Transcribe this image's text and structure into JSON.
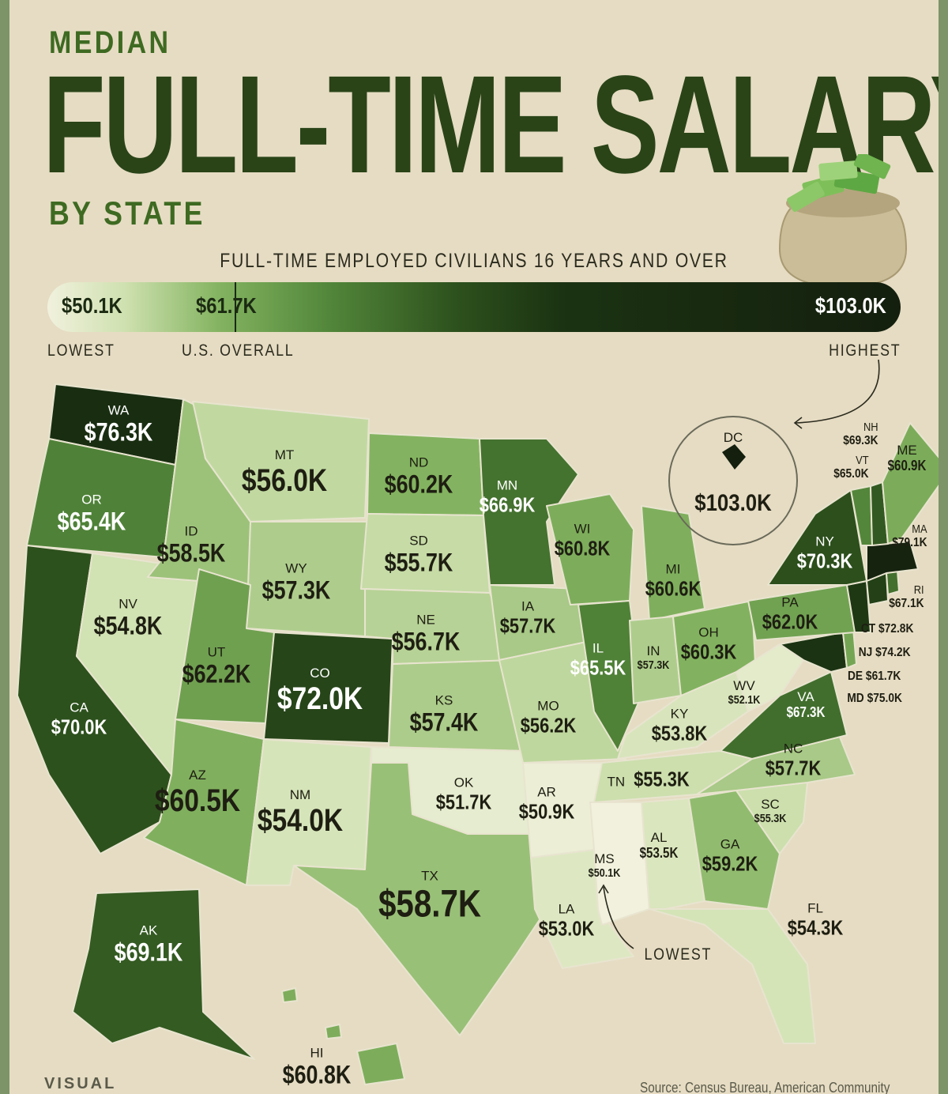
{
  "title": {
    "line1": "MEDIAN",
    "line2": "FULL-TIME SALARY",
    "line3": "BY STATE"
  },
  "subtitle": "FULL-TIME EMPLOYED CIVILIANS 16 YEARS AND OVER",
  "legend": {
    "min_value": "$50.1K",
    "us_value": "$61.7K",
    "max_value": "$103.0K",
    "min_label": "LOWEST",
    "us_label": "U.S. OVERALL",
    "max_label": "HIGHEST",
    "min_numeric": 50.1,
    "us_numeric": 61.7,
    "max_numeric": 103.0,
    "colors": [
      "#f1f1dd",
      "#cfe1b0",
      "#84b461",
      "#52863a",
      "#2d511d",
      "#1b3312",
      "#141f0e"
    ]
  },
  "states": [
    {
      "abbr": "WA",
      "value": "$76.3K"
    },
    {
      "abbr": "OR",
      "value": "$65.4K"
    },
    {
      "abbr": "CA",
      "value": "$70.0K"
    },
    {
      "abbr": "NV",
      "value": "$54.8K"
    },
    {
      "abbr": "ID",
      "value": "$58.5K"
    },
    {
      "abbr": "MT",
      "value": "$56.0K"
    },
    {
      "abbr": "WY",
      "value": "$57.3K"
    },
    {
      "abbr": "UT",
      "value": "$62.2K"
    },
    {
      "abbr": "AZ",
      "value": "$60.5K"
    },
    {
      "abbr": "CO",
      "value": "$72.0K"
    },
    {
      "abbr": "NM",
      "value": "$54.0K"
    },
    {
      "abbr": "ND",
      "value": "$60.2K"
    },
    {
      "abbr": "SD",
      "value": "$55.7K"
    },
    {
      "abbr": "NE",
      "value": "$56.7K"
    },
    {
      "abbr": "KS",
      "value": "$57.4K"
    },
    {
      "abbr": "OK",
      "value": "$51.7K"
    },
    {
      "abbr": "TX",
      "value": "$58.7K"
    },
    {
      "abbr": "MN",
      "value": "$66.9K"
    },
    {
      "abbr": "IA",
      "value": "$57.7K"
    },
    {
      "abbr": "MO",
      "value": "$56.2K"
    },
    {
      "abbr": "AR",
      "value": "$50.9K"
    },
    {
      "abbr": "LA",
      "value": "$53.0K"
    },
    {
      "abbr": "WI",
      "value": "$60.8K"
    },
    {
      "abbr": "IL",
      "value": "$65.5K"
    },
    {
      "abbr": "MI",
      "value": "$60.6K"
    },
    {
      "abbr": "IN",
      "value": "$57.3K"
    },
    {
      "abbr": "OH",
      "value": "$60.3K"
    },
    {
      "abbr": "KY",
      "value": "$53.8K"
    },
    {
      "abbr": "TN",
      "value": "$55.3K"
    },
    {
      "abbr": "MS",
      "value": "$50.1K"
    },
    {
      "abbr": "AL",
      "value": "$53.5K"
    },
    {
      "abbr": "GA",
      "value": "$59.2K"
    },
    {
      "abbr": "FL",
      "value": "$54.3K"
    },
    {
      "abbr": "SC",
      "value": "$55.3K"
    },
    {
      "abbr": "NC",
      "value": "$57.7K"
    },
    {
      "abbr": "VA",
      "value": "$67.3K"
    },
    {
      "abbr": "WV",
      "value": "$52.1K"
    },
    {
      "abbr": "PA",
      "value": "$62.0K"
    },
    {
      "abbr": "NY",
      "value": "$70.3K"
    },
    {
      "abbr": "ME",
      "value": "$60.9K"
    },
    {
      "abbr": "AK",
      "value": "$69.1K"
    },
    {
      "abbr": "HI",
      "value": "$60.8K"
    },
    {
      "abbr": "NH",
      "value": "$69.3K"
    },
    {
      "abbr": "VT",
      "value": "$65.0K"
    },
    {
      "abbr": "MA",
      "value": "$79.1K"
    },
    {
      "abbr": "RI",
      "value": "$67.1K"
    },
    {
      "abbr": "CT",
      "value": "$72.8K"
    },
    {
      "abbr": "NJ",
      "value": "$74.2K"
    },
    {
      "abbr": "DE",
      "value": "$61.7K"
    },
    {
      "abbr": "MD",
      "value": "$75.0K"
    },
    {
      "abbr": "DC",
      "value": "$103.0K"
    }
  ],
  "annotations": {
    "lowest": "LOWEST"
  },
  "logo": "VISUAL",
  "source": "Source: Census Bureau, American Community"
}
